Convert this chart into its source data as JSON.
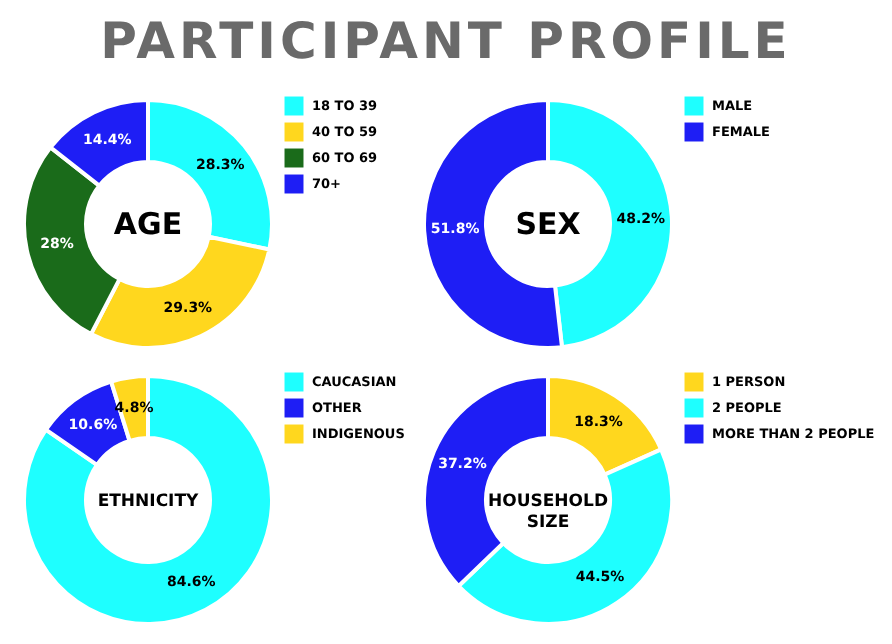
{
  "chart_data": [
    {
      "type": "other",
      "title": "PARTICIPANT PROFILE"
    },
    {
      "type": "donut",
      "title": "AGE",
      "categories": [
        "18 TO 39",
        "40 TO 59",
        "60 TO 69",
        "70+"
      ],
      "values": [
        28.3,
        29.3,
        28,
        14.4
      ],
      "colors": [
        "#1effff",
        "#ffd71e",
        "#1a6b1a",
        "#1e1ef5"
      ],
      "value_labels": [
        "28.3%",
        "29.3%",
        "28%",
        "14.4%"
      ],
      "legend": "top right"
    },
    {
      "type": "donut",
      "title": "SEX",
      "categories": [
        "MALE",
        "FEMALE"
      ],
      "values": [
        48.2,
        51.8
      ],
      "colors": [
        "#1effff",
        "#1e1ef5"
      ],
      "value_labels": [
        "48.2%",
        "51.8%"
      ],
      "legend": "top right"
    },
    {
      "type": "donut",
      "title": "ETHNICITY",
      "categories": [
        "CAUCASIAN",
        "OTHER",
        "INDIGENOUS"
      ],
      "values": [
        84.6,
        10.6,
        4.8
      ],
      "colors": [
        "#1effff",
        "#1e1ef5",
        "#ffd71e"
      ],
      "value_labels": [
        "84.6%",
        "10.6%",
        "4.8%"
      ],
      "legend": "top right"
    },
    {
      "type": "donut",
      "title": "HOUSEHOLD SIZE",
      "categories": [
        "1 PERSON",
        "2 PEOPLE",
        "MORE THAN 2 PEOPLE"
      ],
      "values": [
        18.3,
        44.5,
        37.2
      ],
      "colors": [
        "#ffd71e",
        "#1effff",
        "#1e1ef5"
      ],
      "value_labels": [
        "18.3%",
        "44.5%",
        "37.2%"
      ],
      "legend": "top right"
    }
  ]
}
